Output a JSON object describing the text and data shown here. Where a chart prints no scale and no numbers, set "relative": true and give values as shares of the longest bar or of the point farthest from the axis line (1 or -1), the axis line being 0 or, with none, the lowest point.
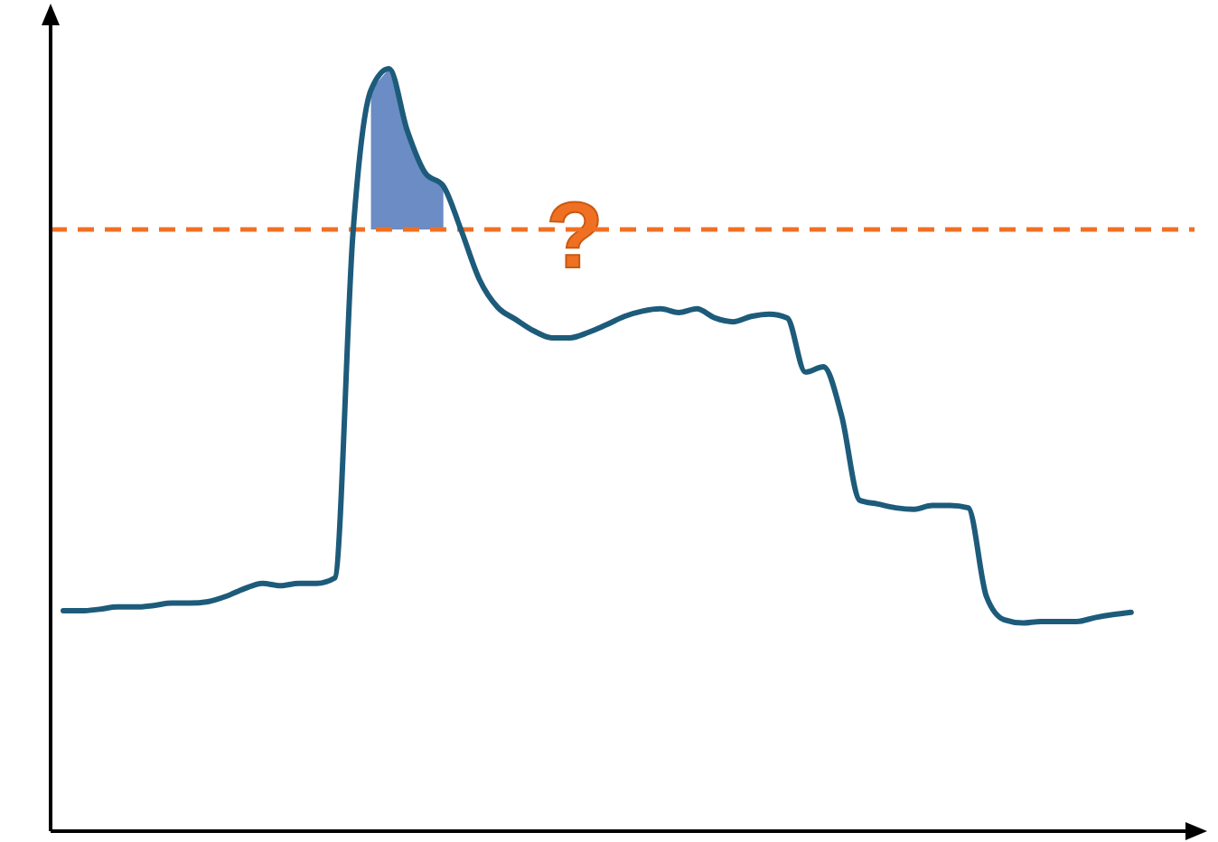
{
  "chart_data": {
    "type": "line",
    "relative": true,
    "categories": [
      null,
      null,
      null,
      null,
      null,
      null,
      null,
      null,
      null,
      null,
      null,
      null,
      null,
      null,
      null,
      null,
      null,
      null,
      null,
      null,
      null,
      null,
      null,
      null,
      null,
      null,
      null,
      null,
      null,
      null,
      null,
      null,
      null,
      null,
      null,
      null,
      null,
      null,
      null,
      null,
      null,
      null,
      null,
      null,
      null,
      null,
      null,
      null,
      null,
      null,
      null,
      null,
      null,
      null,
      null,
      null,
      null,
      null,
      null,
      null
    ],
    "series": [
      {
        "color": "#1d5b7a",
        "values": [
          0.289,
          0.289,
          0.291,
          0.294,
          0.294,
          0.296,
          0.299,
          0.299,
          0.301,
          0.308,
          0.318,
          0.325,
          0.322,
          0.325,
          0.325,
          0.332,
          0.782,
          0.972,
          1,
          0.919,
          0.863,
          0.846,
          0.787,
          0.723,
          0.687,
          0.671,
          0.656,
          0.647,
          0.647,
          0.654,
          0.664,
          0.675,
          0.682,
          0.685,
          0.68,
          0.685,
          0.673,
          0.668,
          0.675,
          0.678,
          0.673,
          0.602,
          0.609,
          0.545,
          0.434,
          0.429,
          0.424,
          0.422,
          0.427,
          0.427,
          0.424,
          0.308,
          0.277,
          0.273,
          0.275,
          0.275,
          0.275,
          0.28,
          0.284,
          0.287
        ],
        "lower": [
          null,
          null,
          null,
          null,
          null,
          null,
          null,
          null,
          null,
          null,
          null,
          null,
          null,
          null,
          null,
          null,
          null,
          0.789,
          0.789,
          0.789,
          0.789,
          0.789,
          null,
          null,
          null,
          null,
          null,
          null,
          null,
          null,
          null,
          null,
          null,
          null,
          null,
          null,
          null,
          null,
          null,
          null,
          null,
          null,
          null,
          null,
          null,
          null,
          null,
          null,
          null,
          null,
          null,
          null,
          null,
          null,
          null,
          null,
          null,
          null,
          null,
          null
        ],
        "upper": [
          null,
          null,
          null,
          null,
          null,
          null,
          null,
          null,
          null,
          null,
          null,
          null,
          null,
          null,
          null,
          null,
          null,
          0.972,
          1,
          0.919,
          0.863,
          0.846,
          null,
          null,
          null,
          null,
          null,
          null,
          null,
          null,
          null,
          null,
          null,
          null,
          null,
          null,
          null,
          null,
          null,
          null,
          null,
          null,
          null,
          null,
          null,
          null,
          null,
          null,
          null,
          null,
          null,
          null,
          null,
          null,
          null,
          null,
          null,
          null,
          null,
          null
        ]
      }
    ],
    "ref_lines": [
      {
        "axis": "y",
        "value": 0.789,
        "color": "#f07023",
        "line_style": "dashed"
      }
    ],
    "annotations": [
      "?"
    ]
  }
}
